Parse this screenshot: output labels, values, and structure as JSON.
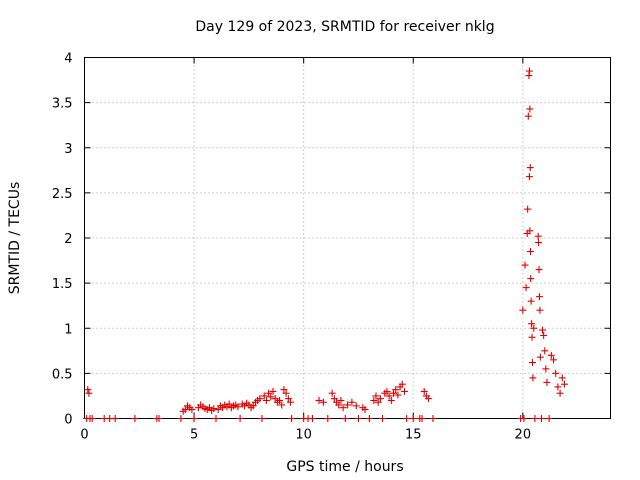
{
  "chart_data": {
    "type": "scatter",
    "title": "Day 129 of 2023, SRMTID for receiver nklg",
    "xlabel": "GPS time / hours",
    "ylabel": "SRMTID / TECUs",
    "xlim": [
      0,
      24
    ],
    "ylim": [
      0,
      4
    ],
    "xticks": [
      0,
      5,
      10,
      15,
      20
    ],
    "yticks": [
      0,
      0.5,
      1,
      1.5,
      2,
      2.5,
      3,
      3.5,
      4
    ],
    "grid": true,
    "marker": "plus",
    "marker_color": "#e00000",
    "series": [
      {
        "name": "SRMTID",
        "points": [
          [
            0.1,
            0.0
          ],
          [
            0.15,
            0.32
          ],
          [
            0.2,
            0.28
          ],
          [
            0.25,
            0.0
          ],
          [
            0.35,
            0.0
          ],
          [
            0.9,
            0.0
          ],
          [
            1.15,
            0.0
          ],
          [
            1.4,
            0.0
          ],
          [
            2.3,
            0.0
          ],
          [
            3.3,
            0.0
          ],
          [
            3.4,
            0.0
          ],
          [
            4.4,
            0.0
          ],
          [
            4.5,
            0.08
          ],
          [
            4.6,
            0.1
          ],
          [
            4.7,
            0.14
          ],
          [
            4.8,
            0.12
          ],
          [
            4.9,
            0.1
          ],
          [
            5.0,
            0.0
          ],
          [
            5.2,
            0.12
          ],
          [
            5.3,
            0.15
          ],
          [
            5.4,
            0.13
          ],
          [
            5.5,
            0.11
          ],
          [
            5.6,
            0.1
          ],
          [
            5.7,
            0.12
          ],
          [
            5.8,
            0.09
          ],
          [
            5.9,
            0.11
          ],
          [
            6.0,
            0.0
          ],
          [
            6.1,
            0.1
          ],
          [
            6.2,
            0.14
          ],
          [
            6.3,
            0.12
          ],
          [
            6.4,
            0.15
          ],
          [
            6.5,
            0.13
          ],
          [
            6.6,
            0.16
          ],
          [
            6.7,
            0.12
          ],
          [
            6.8,
            0.14
          ],
          [
            6.9,
            0.15
          ],
          [
            7.0,
            0.13
          ],
          [
            7.1,
            0.0
          ],
          [
            7.2,
            0.16
          ],
          [
            7.3,
            0.14
          ],
          [
            7.4,
            0.17
          ],
          [
            7.5,
            0.15
          ],
          [
            7.6,
            0.12
          ],
          [
            7.7,
            0.14
          ],
          [
            7.8,
            0.18
          ],
          [
            7.9,
            0.2
          ],
          [
            8.0,
            0.22
          ],
          [
            8.1,
            0.0
          ],
          [
            8.2,
            0.25
          ],
          [
            8.3,
            0.2
          ],
          [
            8.4,
            0.28
          ],
          [
            8.5,
            0.24
          ],
          [
            8.6,
            0.3
          ],
          [
            8.7,
            0.22
          ],
          [
            8.8,
            0.18
          ],
          [
            8.9,
            0.2
          ],
          [
            9.0,
            0.15
          ],
          [
            9.1,
            0.32
          ],
          [
            9.2,
            0.28
          ],
          [
            9.3,
            0.22
          ],
          [
            9.4,
            0.18
          ],
          [
            9.45,
            0.0
          ],
          [
            10.0,
            0.0
          ],
          [
            10.2,
            0.0
          ],
          [
            10.4,
            0.0
          ],
          [
            10.7,
            0.2
          ],
          [
            10.9,
            0.18
          ],
          [
            11.1,
            0.0
          ],
          [
            11.3,
            0.28
          ],
          [
            11.4,
            0.22
          ],
          [
            11.5,
            0.18
          ],
          [
            11.6,
            0.15
          ],
          [
            11.7,
            0.2
          ],
          [
            11.8,
            0.12
          ],
          [
            11.9,
            0.0
          ],
          [
            12.0,
            0.15
          ],
          [
            12.2,
            0.18
          ],
          [
            12.4,
            0.14
          ],
          [
            12.5,
            0.0
          ],
          [
            12.7,
            0.12
          ],
          [
            12.8,
            0.1
          ],
          [
            13.0,
            0.0
          ],
          [
            13.2,
            0.2
          ],
          [
            13.3,
            0.25
          ],
          [
            13.4,
            0.18
          ],
          [
            13.5,
            0.22
          ],
          [
            13.6,
            0.0
          ],
          [
            13.7,
            0.28
          ],
          [
            13.8,
            0.3
          ],
          [
            13.9,
            0.25
          ],
          [
            14.0,
            0.2
          ],
          [
            14.1,
            0.28
          ],
          [
            14.2,
            0.32
          ],
          [
            14.3,
            0.26
          ],
          [
            14.4,
            0.35
          ],
          [
            14.5,
            0.38
          ],
          [
            14.6,
            0.3
          ],
          [
            14.7,
            0.0
          ],
          [
            15.0,
            0.0
          ],
          [
            15.3,
            0.0
          ],
          [
            15.4,
            0.0
          ],
          [
            15.5,
            0.3
          ],
          [
            15.6,
            0.25
          ],
          [
            15.7,
            0.22
          ],
          [
            15.9,
            0.0
          ],
          [
            19.9,
            0.0
          ],
          [
            20.0,
            1.2
          ],
          [
            20.05,
            0.0
          ],
          [
            20.1,
            1.7
          ],
          [
            20.15,
            1.45
          ],
          [
            20.2,
            2.05
          ],
          [
            20.22,
            2.32
          ],
          [
            20.25,
            3.35
          ],
          [
            20.28,
            3.8
          ],
          [
            20.3,
            3.85
          ],
          [
            20.32,
            3.43
          ],
          [
            20.34,
            2.78
          ],
          [
            20.3,
            2.68
          ],
          [
            20.32,
            2.08
          ],
          [
            20.35,
            1.85
          ],
          [
            20.36,
            1.55
          ],
          [
            20.38,
            1.3
          ],
          [
            20.4,
            1.05
          ],
          [
            20.42,
            0.9
          ],
          [
            20.44,
            0.62
          ],
          [
            20.46,
            0.45
          ],
          [
            20.5,
            1.0
          ],
          [
            20.55,
            0.0
          ],
          [
            20.7,
            2.02
          ],
          [
            20.72,
            1.95
          ],
          [
            20.74,
            1.65
          ],
          [
            20.76,
            1.35
          ],
          [
            20.78,
            1.2
          ],
          [
            20.8,
            0.68
          ],
          [
            20.85,
            0.0
          ],
          [
            20.9,
            0.98
          ],
          [
            20.95,
            0.92
          ],
          [
            21.0,
            0.75
          ],
          [
            21.05,
            0.55
          ],
          [
            21.1,
            0.4
          ],
          [
            21.2,
            0.0
          ],
          [
            21.3,
            0.7
          ],
          [
            21.4,
            0.65
          ],
          [
            21.5,
            0.5
          ],
          [
            21.6,
            0.35
          ],
          [
            21.7,
            0.28
          ],
          [
            21.8,
            0.45
          ],
          [
            21.9,
            0.38
          ]
        ]
      }
    ]
  }
}
